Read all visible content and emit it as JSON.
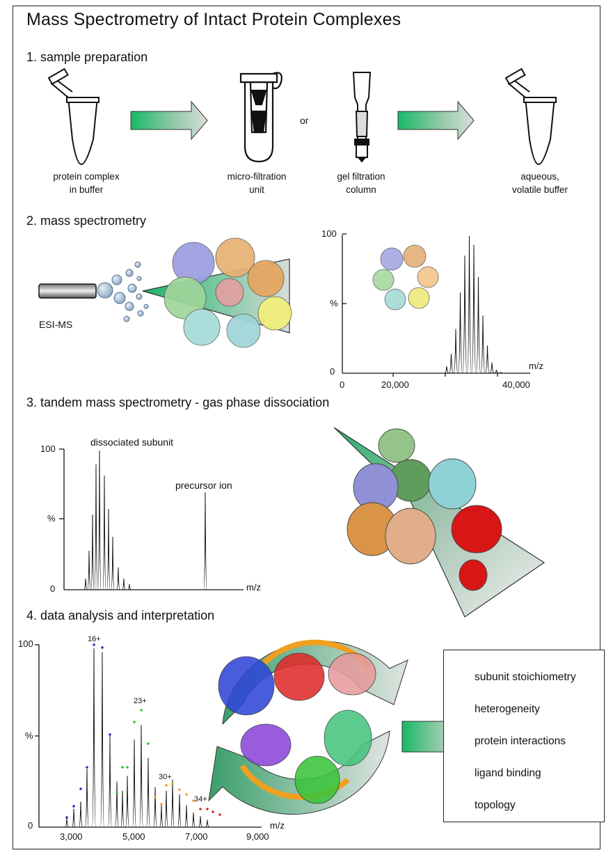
{
  "title": "Mass Spectrometry of Intact Protein Complexes",
  "sections": {
    "s1": "1. sample preparation",
    "s2": "2. mass spectrometry",
    "s3": "3. tandem mass spectrometry - gas phase dissociation",
    "s4": "4. data analysis and interpretation"
  },
  "prep": {
    "tube1": [
      "protein complex",
      "in buffer"
    ],
    "filter": [
      "micro-filtration",
      "unit"
    ],
    "or": "or",
    "column": [
      "gel filtration",
      "column"
    ],
    "tube2": [
      "aqueous,",
      "volatile buffer"
    ]
  },
  "ms": {
    "source_label": "ESI-MS",
    "y_top": "100",
    "y_mid": "%",
    "y_zero": "0",
    "x_ticks": [
      "0",
      "20,000",
      "40,000"
    ],
    "x_unit": "m/z"
  },
  "tandem": {
    "y_top": "100",
    "y_mid": "%",
    "y_zero": "0",
    "x_unit": "m/z",
    "label_subunit": "dissociated subunit",
    "label_precursor": "precursor ion"
  },
  "analysis": {
    "y_top": "100",
    "y_mid": "%",
    "y_zero": "0",
    "x_ticks": [
      "3,000",
      "5,000",
      "7,000",
      "9,000"
    ],
    "x_unit": "m/z",
    "charge_labels": [
      "16+",
      "23+",
      "30+",
      "34+"
    ]
  },
  "results": [
    "subunit stoichiometry",
    "heterogeneity",
    "protein interactions",
    "ligand binding",
    "topology"
  ],
  "colors": {
    "green": "#1dbb6c",
    "gray": "#b8c2bc",
    "blue": "#2233cc",
    "red": "#dd2222",
    "orange": "#f0a020",
    "purple": "#7b3fcf"
  }
}
